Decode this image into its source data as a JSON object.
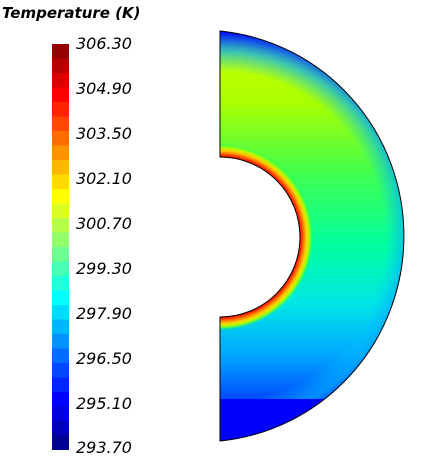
{
  "legend": {
    "title": "Temperature (K)",
    "ticks": [
      "306.30",
      "304.90",
      "303.50",
      "302.10",
      "300.70",
      "299.30",
      "297.90",
      "296.50",
      "295.10",
      "293.70"
    ],
    "min": 293.7,
    "max": 306.3,
    "levels": 28
  },
  "colors": {
    "hot": "#ff0000",
    "cold": "#0000ff",
    "background": "#ffffff"
  }
}
